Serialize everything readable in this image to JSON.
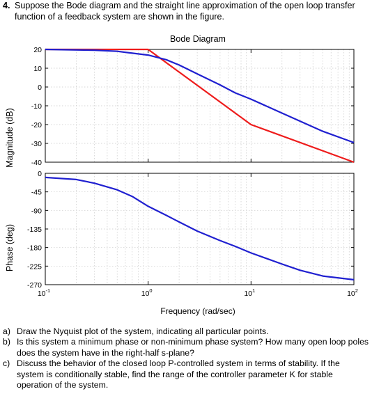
{
  "question": {
    "number": "4.",
    "text": "Suppose the Bode diagram and the straight line approximation of the open loop transfer function of a feedback system are shown in the figure."
  },
  "subquestions": [
    {
      "letter": "a)",
      "text": "Draw the Nyquist plot of the system, indicating all particular points."
    },
    {
      "letter": "b)",
      "text": "Is this system a minimum phase or non-minimum phase system? How many open loop poles does the system have in the right-half s-plane?"
    },
    {
      "letter": "c)",
      "text": "Discuss the behavior of the closed loop P-controlled system in terms of stability. If the system is conditionally stable, find the range of the controller parameter K for stable operation of the system."
    }
  ],
  "chart_data": {
    "type": "line",
    "title": "Bode Diagram",
    "xlabel": "Frequency (rad/sec)",
    "xscale": "log",
    "xlim": [
      0.1,
      100
    ],
    "x_ticks": [
      {
        "base": "10",
        "exp": "-1"
      },
      {
        "base": "10",
        "exp": "0"
      },
      {
        "base": "10",
        "exp": "1"
      },
      {
        "base": "10",
        "exp": "2"
      }
    ],
    "grid": true,
    "colors": {
      "exact": "#2020d0",
      "asymptote": "#ee1c1c"
    },
    "magnitude": {
      "ylabel": "Magnitude (dB)",
      "ylim": [
        -40,
        20
      ],
      "yticks": [
        "20",
        "10",
        "0",
        "-10",
        "-20",
        "-30",
        "-40"
      ],
      "yticks_values": [
        20,
        10,
        0,
        -10,
        -20,
        -30,
        -40
      ],
      "exact": {
        "x": [
          0.1,
          0.3,
          0.5,
          0.7,
          1,
          1.5,
          2,
          3,
          5,
          7,
          10,
          20,
          50,
          100
        ],
        "y": [
          20,
          19.6,
          19,
          18,
          17,
          14.5,
          11.7,
          7,
          1.1,
          -3.1,
          -6.5,
          -13.9,
          -23.6,
          -29.6
        ]
      },
      "asymptote": {
        "x": [
          0.1,
          1,
          10,
          100
        ],
        "y": [
          20,
          20,
          -20,
          -40
        ]
      }
    },
    "phase": {
      "ylabel": "Phase (deg)",
      "ylim": [
        -270,
        0
      ],
      "yticks": [
        "0",
        "-45",
        "-90",
        "-135",
        "-180",
        "-225",
        "-270"
      ],
      "yticks_values": [
        0,
        -45,
        -90,
        -135,
        -180,
        -225,
        -270
      ],
      "exact": {
        "x": [
          0.1,
          0.2,
          0.3,
          0.5,
          0.7,
          1,
          1.5,
          2,
          3,
          5,
          7,
          10,
          20,
          30,
          50,
          100
        ],
        "y": [
          -10,
          -15,
          -24,
          -40,
          -56,
          -80,
          -102,
          -118,
          -140,
          -163,
          -177,
          -193,
          -220,
          -235,
          -249,
          -258
        ]
      }
    }
  }
}
